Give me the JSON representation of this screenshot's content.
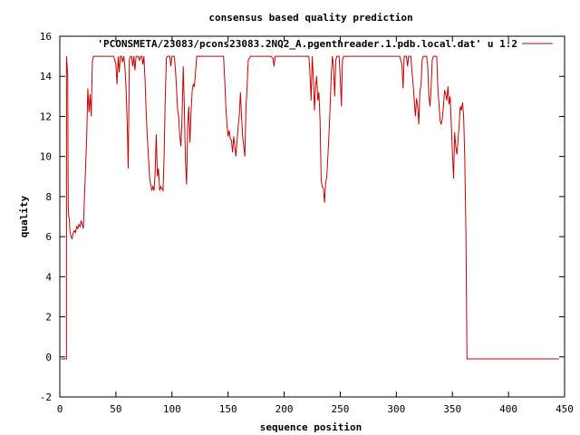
{
  "chart_data": {
    "type": "line",
    "title": "consensus based quality prediction",
    "xlabel": "sequence position",
    "ylabel": "quality",
    "xlim": [
      0,
      450
    ],
    "ylim": [
      -2,
      16
    ],
    "xticks": [
      0,
      50,
      100,
      150,
      200,
      250,
      300,
      350,
      400,
      450
    ],
    "yticks": [
      -2,
      0,
      2,
      4,
      6,
      8,
      10,
      12,
      14,
      16
    ],
    "legend_position": "top-right",
    "grid": false,
    "series": [
      {
        "name": "'PCONSMETA/23083/pcons23083.2NQ2_A.pgenthreader.1.pdb.local.dat' u 1:2",
        "color": "#cc0000",
        "x": [
          1,
          6,
          6,
          7,
          7.5,
          8,
          8.5,
          9,
          10,
          11,
          12,
          13,
          14,
          15,
          16,
          17,
          18,
          19,
          20,
          21,
          22,
          23,
          24,
          25,
          26,
          27,
          28,
          29,
          30,
          31,
          32,
          33,
          35,
          40,
          45,
          48,
          50,
          51,
          52,
          53,
          54,
          55,
          56,
          57,
          58,
          59,
          60,
          61,
          62,
          63,
          64,
          65,
          66,
          67,
          68,
          69,
          70,
          71,
          72,
          73,
          74,
          75,
          76,
          77,
          78,
          79,
          80,
          81,
          82,
          83,
          84,
          85,
          86,
          87,
          88,
          89,
          90,
          91,
          92,
          93,
          94,
          95,
          96,
          97,
          98,
          99,
          100,
          101,
          102,
          103,
          104,
          105,
          106,
          107,
          108,
          109,
          110,
          111,
          112,
          113,
          114,
          115,
          116,
          117,
          118,
          119,
          120,
          121,
          122,
          123,
          125,
          130,
          135,
          140,
          142,
          144,
          146,
          147,
          148,
          149,
          150,
          151,
          152,
          153,
          154,
          155,
          156,
          157,
          158,
          159,
          160,
          161,
          162,
          163,
          164,
          165,
          166,
          167,
          168,
          170,
          175,
          180,
          185,
          188,
          190,
          191,
          192,
          195,
          200,
          205,
          210,
          215,
          220,
          222,
          223,
          224,
          225,
          226,
          227,
          228,
          229,
          230,
          231,
          232,
          233,
          234,
          235,
          236,
          237,
          238,
          239,
          240,
          241,
          242,
          243,
          244,
          245,
          246,
          247,
          248,
          249,
          250,
          251,
          252,
          253,
          255,
          260,
          265,
          270,
          275,
          280,
          285,
          290,
          295,
          300,
          303,
          305,
          306,
          307,
          308,
          309,
          310,
          311,
          312,
          313,
          314,
          315,
          316,
          317,
          318,
          319,
          320,
          321,
          322,
          323,
          324,
          325,
          326,
          327,
          328,
          329,
          330,
          331,
          332,
          333,
          334,
          335,
          336,
          337,
          338,
          339,
          340,
          341,
          342,
          343,
          344,
          345,
          346,
          347,
          348,
          349,
          350,
          351,
          352,
          353,
          354,
          355,
          356,
          357,
          358,
          359,
          360,
          361,
          362,
          363,
          365,
          400,
          445
        ],
        "y": [
          -0.1,
          -0.1,
          15.0,
          14.1,
          7.5,
          7.0,
          6.9,
          6.3,
          6.0,
          5.9,
          6.2,
          6.3,
          6.2,
          6.5,
          6.4,
          6.6,
          6.5,
          6.8,
          6.6,
          6.4,
          8.0,
          9.5,
          11.0,
          13.4,
          12.2,
          13.1,
          12.0,
          14.7,
          15.0,
          15.0,
          15.0,
          15.0,
          15.0,
          15.0,
          15.0,
          15.0,
          14.6,
          13.6,
          15.0,
          14.2,
          15.0,
          15.0,
          14.7,
          15.0,
          14.5,
          13.5,
          11.8,
          9.4,
          14.8,
          15.0,
          15.0,
          14.5,
          15.0,
          14.3,
          15.0,
          15.0,
          15.0,
          14.8,
          15.0,
          15.0,
          14.6,
          15.0,
          13.8,
          12.2,
          11.0,
          10.0,
          9.0,
          8.6,
          8.3,
          8.5,
          8.3,
          9.2,
          11.1,
          9.0,
          9.4,
          8.3,
          8.5,
          8.4,
          8.3,
          10.0,
          13.0,
          14.9,
          15.0,
          15.0,
          15.0,
          14.5,
          15.0,
          15.0,
          15.0,
          14.4,
          13.5,
          12.3,
          12.0,
          11.0,
          10.5,
          12.0,
          14.5,
          12.5,
          9.8,
          8.6,
          11.5,
          12.5,
          10.7,
          12.2,
          13.3,
          13.6,
          13.5,
          14.2,
          15.0,
          15.0,
          15.0,
          15.0,
          15.0,
          15.0,
          15.0,
          15.0,
          15.0,
          13.8,
          12.5,
          11.6,
          11.0,
          11.3,
          10.9,
          10.8,
          10.2,
          11.0,
          10.5,
          10.0,
          10.8,
          11.5,
          12.0,
          13.2,
          12.0,
          11.0,
          10.5,
          10.0,
          12.5,
          13.5,
          14.8,
          15.0,
          15.0,
          15.0,
          15.0,
          15.0,
          14.9,
          14.5,
          15.0,
          15.0,
          15.0,
          15.0,
          15.0,
          15.0,
          15.0,
          15.0,
          14.2,
          12.8,
          15.0,
          14.0,
          12.3,
          13.5,
          14.0,
          12.8,
          13.2,
          11.8,
          8.8,
          8.5,
          8.4,
          7.7,
          8.7,
          9.0,
          10.0,
          11.2,
          12.5,
          14.0,
          15.0,
          14.5,
          13.0,
          14.8,
          15.0,
          15.0,
          15.0,
          14.0,
          12.5,
          14.8,
          15.0,
          15.0,
          15.0,
          15.0,
          15.0,
          15.0,
          15.0,
          15.0,
          15.0,
          15.0,
          15.0,
          15.0,
          14.6,
          13.4,
          15.0,
          15.0,
          15.0,
          14.5,
          15.0,
          15.0,
          15.0,
          14.2,
          13.6,
          12.8,
          12.0,
          12.9,
          12.5,
          11.6,
          13.2,
          13.6,
          14.8,
          15.0,
          15.0,
          15.0,
          15.0,
          14.5,
          13.0,
          12.5,
          13.4,
          14.8,
          15.0,
          15.0,
          15.0,
          15.0,
          13.5,
          12.6,
          11.8,
          11.6,
          11.9,
          12.5,
          13.3,
          13.1,
          12.8,
          13.5,
          12.6,
          13.0,
          11.6,
          10.2,
          8.9,
          11.2,
          10.5,
          10.1,
          10.8,
          11.5,
          12.5,
          12.3,
          12.7,
          12.0,
          10.0,
          6.3,
          -0.1,
          -0.1,
          -0.1,
          -0.1
        ]
      }
    ]
  }
}
